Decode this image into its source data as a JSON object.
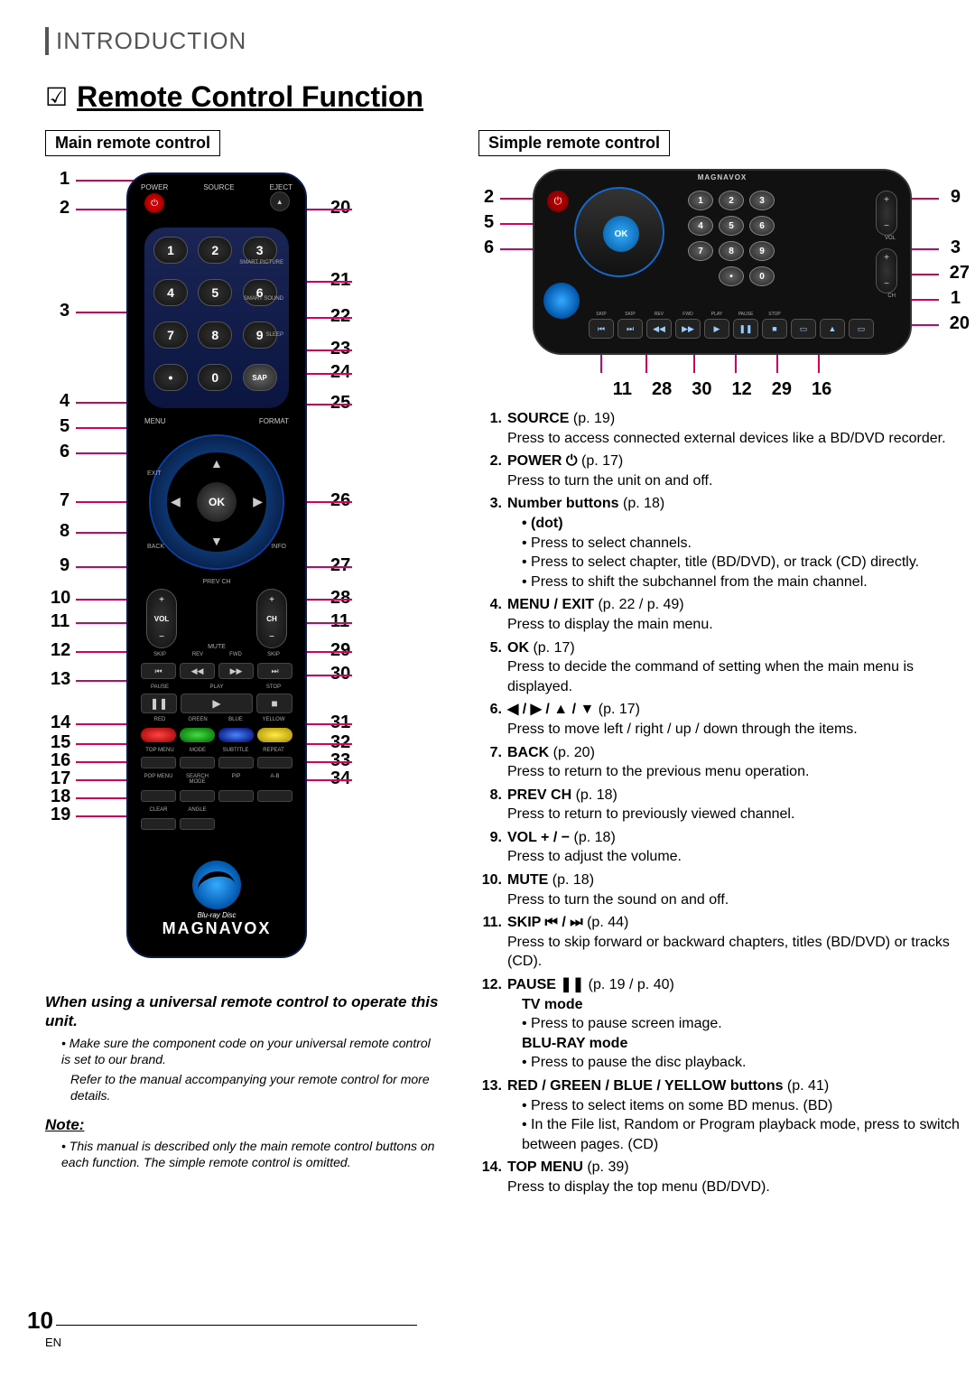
{
  "section": "INTRODUCTION",
  "title": "Remote Control Function",
  "mainHeader": "Main remote control",
  "simpleHeader": "Simple remote control",
  "brand": "MAGNAVOX",
  "bluray": "Blu-ray Disc",
  "universal": {
    "heading": "When using a universal remote control to operate this unit.",
    "b1": "Make sure the component code on your universal remote control is set to our brand.",
    "b2": "Refer to the manual accompanying your remote control for more details."
  },
  "note": {
    "heading": "Note:",
    "text": "This manual is described only the main remote control buttons on each function. The simple remote control is omitted."
  },
  "remote": {
    "labels": {
      "power": "POWER",
      "source": "SOURCE",
      "eject": "EJECT",
      "smartPic": "SMART PICTURE",
      "smartSnd": "SMART SOUND",
      "sleep": "SLEEP",
      "menu": "MENU",
      "format": "FORMAT",
      "exit": "EXIT",
      "back": "BACK",
      "info": "INFO",
      "ok": "OK",
      "prevch": "PREV CH",
      "vol": "VOL",
      "ch": "CH",
      "mute": "MUTE",
      "skip": "SKIP",
      "rev": "REV",
      "fwd": "FWD",
      "pause": "PAUSE",
      "play": "PLAY",
      "stop": "STOP",
      "red": "RED",
      "green": "GREEN",
      "blue": "BLUE",
      "yellow": "YELLOW",
      "topmenu": "TOP MENU",
      "mode": "MODE",
      "subtitle": "SUBTITLE",
      "repeat": "REPEAT",
      "popmenu": "POP MENU",
      "search": "SEARCH MODE",
      "pip": "PIP",
      "ab": "A-B",
      "clear": "CLEAR",
      "angle": "ANGLE",
      "sap": "SAP"
    },
    "nums": [
      "1",
      "2",
      "3",
      "4",
      "5",
      "6",
      "7",
      "8",
      "9",
      "•",
      "0"
    ],
    "plus": "+",
    "minus": "−"
  },
  "calloutsLeft": [
    "1",
    "2",
    "3",
    "4",
    "5",
    "6",
    "7",
    "8",
    "9",
    "10",
    "11",
    "12",
    "13",
    "14",
    "15",
    "16",
    "17",
    "18",
    "19"
  ],
  "calloutsRight": [
    "20",
    "21",
    "22",
    "23",
    "24",
    "25",
    "26",
    "27",
    "28",
    "29",
    "30",
    "31",
    "32",
    "33",
    "34"
  ],
  "simpleCallouts": {
    "left": [
      "2",
      "5",
      "6"
    ],
    "right": [
      "9",
      "3",
      "27",
      "1",
      "20"
    ],
    "bottom": [
      "11",
      "28",
      "30",
      "12",
      "29",
      "16"
    ]
  },
  "desc": [
    {
      "n": "1.",
      "term": "SOURCE",
      "pg": " (p. 19)",
      "lines": [
        "Press to access connected external devices like a BD/DVD recorder."
      ]
    },
    {
      "n": "2.",
      "term": "POWER ⏻",
      "pg": " (p. 17)",
      "lines": [
        "Press to turn the unit on and off."
      ]
    },
    {
      "n": "3.",
      "term": "Number buttons",
      "pg": " (p. 18)",
      "subs": [
        "Press to select channels.",
        "Press to select chapter, title (BD/DVD), or track (CD) directly."
      ],
      "bold": "• (dot)",
      "subs2": [
        "Press to shift the subchannel from the main channel."
      ]
    },
    {
      "n": "4.",
      "term": "MENU / EXIT",
      "pg": " (p. 22 / p. 49)",
      "lines": [
        "Press to display the main menu."
      ]
    },
    {
      "n": "5.",
      "term": "OK",
      "pg": " (p. 17)",
      "lines": [
        "Press to decide the command of setting when the main menu is displayed."
      ]
    },
    {
      "n": "6.",
      "term": "◀ / ▶ / ▲ / ▼",
      "pg": " (p. 17)",
      "lines": [
        "Press to move left / right / up / down through the items."
      ]
    },
    {
      "n": "7.",
      "term": "BACK",
      "pg": " (p. 20)",
      "lines": [
        "Press to return to the previous menu operation."
      ]
    },
    {
      "n": "8.",
      "term": "PREV CH",
      "pg": " (p. 18)",
      "lines": [
        "Press to return to previously viewed channel."
      ]
    },
    {
      "n": "9.",
      "term": "VOL + / −",
      "pg": " (p. 18)",
      "lines": [
        "Press to adjust the volume."
      ]
    },
    {
      "n": "10.",
      "term": "MUTE",
      "pg": " (p. 18)",
      "lines": [
        "Press to turn the sound on and off."
      ]
    },
    {
      "n": "11.",
      "term": "SKIP ⏮ / ⏭",
      "pg": " (p. 44)",
      "lines": [
        "Press to skip forward or backward chapters, titles (BD/DVD) or tracks (CD)."
      ]
    },
    {
      "n": "12.",
      "term": "PAUSE ❚❚",
      "pg": " (p. 19 / p. 40)",
      "bold": "TV mode",
      "subs": [
        "Press to pause screen image."
      ],
      "bold2": "BLU-RAY mode",
      "subs2": [
        "Press to pause the disc playback."
      ]
    },
    {
      "n": "13.",
      "term": "RED / GREEN / BLUE / YELLOW buttons",
      "pg": " (p. 41)",
      "subs": [
        "Press to select items on some BD menus. (BD)",
        "In the File list, Random or Program playback mode, press to switch between pages. (CD)"
      ]
    },
    {
      "n": "14.",
      "term": "TOP MENU",
      "pg": " (p. 39)",
      "lines": [
        "Press to display the top menu (BD/DVD)."
      ]
    }
  ],
  "pageNumber": "10",
  "lang": "EN",
  "colors": {
    "accent": "#d50060"
  }
}
